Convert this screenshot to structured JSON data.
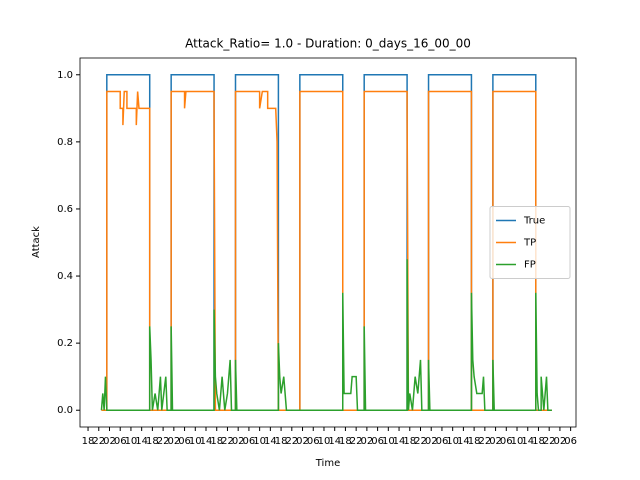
{
  "chart_data": {
    "type": "line",
    "title": "Attack_Ratio= 1.0 - Duration: 0_days_16_00_00",
    "x_label": "Time",
    "y_label": "Attack",
    "xlim": [
      15,
      200
    ],
    "ylim": [
      -0.05,
      1.05
    ],
    "yticks": [
      {
        "value": 0,
        "label": "0.0"
      },
      {
        "value": 0.2,
        "label": "0.2"
      },
      {
        "value": 0.4,
        "label": "0.4"
      },
      {
        "value": 0.6,
        "label": "0.6"
      },
      {
        "value": 0.8,
        "label": "0.8"
      },
      {
        "value": 1,
        "label": "1.0"
      }
    ],
    "xticks": [
      {
        "value": 18,
        "label": "18"
      },
      {
        "value": 22,
        "label": "22"
      },
      {
        "value": 26,
        "label": "02"
      },
      {
        "value": 30,
        "label": "06"
      },
      {
        "value": 34,
        "label": "10"
      },
      {
        "value": 38,
        "label": "14"
      },
      {
        "value": 42,
        "label": "18"
      },
      {
        "value": 46,
        "label": "22"
      },
      {
        "value": 50,
        "label": "02"
      },
      {
        "value": 54,
        "label": "06"
      },
      {
        "value": 58,
        "label": "10"
      },
      {
        "value": 62,
        "label": "14"
      },
      {
        "value": 66,
        "label": "18"
      },
      {
        "value": 70,
        "label": "22"
      },
      {
        "value": 74,
        "label": "02"
      },
      {
        "value": 78,
        "label": "06"
      },
      {
        "value": 82,
        "label": "10"
      },
      {
        "value": 86,
        "label": "14"
      },
      {
        "value": 90,
        "label": "18"
      },
      {
        "value": 94,
        "label": "22"
      },
      {
        "value": 98,
        "label": "02"
      },
      {
        "value": 102,
        "label": "06"
      },
      {
        "value": 106,
        "label": "10"
      },
      {
        "value": 110,
        "label": "14"
      },
      {
        "value": 114,
        "label": "18"
      },
      {
        "value": 118,
        "label": "22"
      },
      {
        "value": 122,
        "label": "02"
      },
      {
        "value": 126,
        "label": "06"
      },
      {
        "value": 130,
        "label": "10"
      },
      {
        "value": 134,
        "label": "14"
      },
      {
        "value": 138,
        "label": "18"
      },
      {
        "value": 142,
        "label": "22"
      },
      {
        "value": 146,
        "label": "02"
      },
      {
        "value": 150,
        "label": "06"
      },
      {
        "value": 154,
        "label": "10"
      },
      {
        "value": 158,
        "label": "14"
      },
      {
        "value": 162,
        "label": "18"
      },
      {
        "value": 166,
        "label": "22"
      },
      {
        "value": 170,
        "label": "02"
      },
      {
        "value": 174,
        "label": "06"
      },
      {
        "value": 178,
        "label": "10"
      },
      {
        "value": 182,
        "label": "14"
      },
      {
        "value": 186,
        "label": "18"
      },
      {
        "value": 190,
        "label": "22"
      },
      {
        "value": 194,
        "label": "02"
      },
      {
        "value": 198,
        "label": "06"
      }
    ],
    "legend": "center right",
    "series": [
      {
        "name": "True",
        "color": "#1f77b4",
        "x": [
          23,
          25,
          25,
          41,
          41,
          49,
          49,
          65,
          65,
          73,
          73,
          89,
          89,
          97,
          97,
          113,
          113,
          121,
          121,
          137,
          137,
          145,
          145,
          161,
          161,
          169,
          169,
          185,
          185,
          191
        ],
        "values": [
          0,
          0,
          1,
          1,
          0,
          0,
          1,
          1,
          0,
          0,
          1,
          1,
          0,
          0,
          1,
          1,
          0,
          0,
          1,
          1,
          0,
          0,
          1,
          1,
          0,
          0,
          1,
          1,
          0,
          0
        ]
      },
      {
        "name": "TP",
        "color": "#ff7f0e",
        "x": [
          23,
          25,
          25,
          30,
          30,
          31,
          31,
          31.5,
          32.5,
          32.5,
          36,
          36,
          36.5,
          37,
          39.5,
          41,
          41,
          49,
          49,
          54,
          54,
          54.5,
          65,
          65,
          65.5,
          73,
          73,
          82,
          82,
          83,
          85,
          85,
          88,
          88.5,
          89,
          97,
          97,
          113,
          113,
          121,
          121,
          137,
          137,
          137.5,
          145,
          145,
          161,
          161,
          169,
          169,
          185,
          185,
          191
        ],
        "values": [
          0,
          0,
          0.95,
          0.95,
          0.9,
          0.9,
          0.85,
          0.95,
          0.95,
          0.9,
          0.9,
          0.85,
          0.95,
          0.9,
          0.9,
          0.9,
          0,
          0,
          0.95,
          0.95,
          0.9,
          0.95,
          0.95,
          0.9,
          0,
          0,
          0.95,
          0.95,
          0.9,
          0.95,
          0.95,
          0.9,
          0.9,
          0.8,
          0,
          0,
          0.95,
          0.95,
          0,
          0,
          0.95,
          0.95,
          0.9,
          0,
          0,
          0.95,
          0.95,
          0,
          0,
          0.95,
          0.95,
          0,
          0
        ]
      },
      {
        "name": "FP",
        "color": "#2ca02c",
        "x": [
          23,
          23.5,
          24,
          24.5,
          25,
          41,
          41,
          41.5,
          42,
          43,
          44,
          45,
          45.5,
          47,
          47.5,
          49,
          49,
          49.5,
          65,
          65,
          65.5,
          66,
          67,
          68,
          69,
          70,
          71,
          71.5,
          73,
          73,
          73.5,
          89,
          89,
          89.5,
          90,
          91,
          92,
          97,
          113,
          113,
          113.5,
          116,
          116.5,
          118,
          118.5,
          121,
          121,
          121.5,
          137,
          137,
          137.5,
          138,
          139,
          140,
          141,
          142,
          142.5,
          145,
          145,
          145.5,
          161,
          161,
          161.5,
          162,
          163,
          165,
          165.5,
          166,
          169,
          169,
          169.5,
          185,
          185,
          185.5,
          186,
          187,
          187,
          188,
          189,
          189.5,
          191
        ],
        "values": [
          0,
          0.05,
          0,
          0.1,
          0,
          0,
          0.25,
          0.15,
          0,
          0.05,
          0,
          0.1,
          0,
          0.1,
          0,
          0,
          0.25,
          0,
          0,
          0.3,
          0.1,
          0.05,
          0,
          0.1,
          0,
          0.05,
          0.15,
          0,
          0,
          0.15,
          0,
          0,
          0.2,
          0.1,
          0.05,
          0.1,
          0,
          0,
          0,
          0.35,
          0.05,
          0.05,
          0.1,
          0.1,
          0,
          0,
          0.25,
          0,
          0,
          0.45,
          0,
          0.05,
          0,
          0.1,
          0.05,
          0.15,
          0,
          0,
          0.15,
          0,
          0,
          0.35,
          0.15,
          0.1,
          0.05,
          0.05,
          0.1,
          0,
          0,
          0.15,
          0,
          0,
          0.35,
          0.05,
          0,
          0,
          0.1,
          0,
          0.1,
          0,
          0
        ]
      }
    ]
  }
}
